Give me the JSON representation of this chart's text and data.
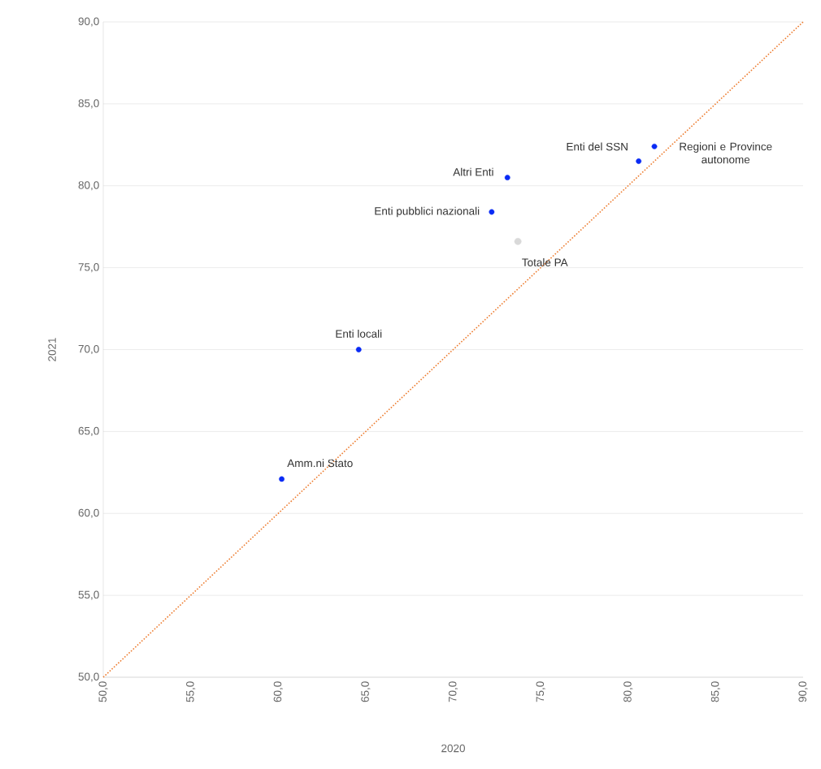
{
  "chart_data": {
    "type": "scatter",
    "xlabel": "2020",
    "ylabel": "2021",
    "xlim": [
      50,
      90
    ],
    "ylim": [
      50,
      90
    ],
    "xticks": [
      {
        "value": 50,
        "label": "50,0"
      },
      {
        "value": 55,
        "label": "55,0"
      },
      {
        "value": 60,
        "label": "60,0"
      },
      {
        "value": 65,
        "label": "65,0"
      },
      {
        "value": 70,
        "label": "70,0"
      },
      {
        "value": 75,
        "label": "75,0"
      },
      {
        "value": 80,
        "label": "80,0"
      },
      {
        "value": 85,
        "label": "85,0"
      },
      {
        "value": 90,
        "label": "90,0"
      }
    ],
    "yticks": [
      {
        "value": 50,
        "label": "50,0"
      },
      {
        "value": 55,
        "label": "55,0"
      },
      {
        "value": 60,
        "label": "60,0"
      },
      {
        "value": 65,
        "label": "65,0"
      },
      {
        "value": 70,
        "label": "70,0"
      },
      {
        "value": 75,
        "label": "75,0"
      },
      {
        "value": 80,
        "label": "80,0"
      },
      {
        "value": 85,
        "label": "85,0"
      },
      {
        "value": 90,
        "label": "90,0"
      }
    ],
    "grid": "y",
    "marker": "circle",
    "series": [
      {
        "color": "#0a2bf5",
        "x": [
          60.2,
          64.6,
          72.2,
          73.1,
          80.6,
          81.5
        ],
        "values": [
          62.1,
          70.0,
          78.4,
          80.5,
          81.5,
          82.4
        ]
      },
      {
        "color": "#d9d9d9",
        "x": [
          73.7
        ],
        "values": [
          76.6
        ]
      },
      {
        "type": "line",
        "color": "#ed7d31",
        "line_style": "dotted",
        "marker": "none",
        "x": [
          50,
          90
        ],
        "values": [
          50,
          90
        ]
      }
    ],
    "annotations": [
      {
        "text": "Amm.ni Stato",
        "x": 60.2,
        "y": 62.1
      },
      {
        "text": "Enti locali",
        "x": 64.6,
        "y": 70.0
      },
      {
        "text": "Enti pubblici nazionali",
        "x": 72.2,
        "y": 78.4
      },
      {
        "text": "Altri Enti",
        "x": 73.1,
        "y": 80.5
      },
      {
        "text": "Totale PA",
        "x": 73.7,
        "y": 76.6
      },
      {
        "text": "Enti del SSN",
        "x": 80.6,
        "y": 81.5
      },
      {
        "text": "Regioni e Province autonome",
        "x": 81.5,
        "y": 82.4
      }
    ]
  }
}
